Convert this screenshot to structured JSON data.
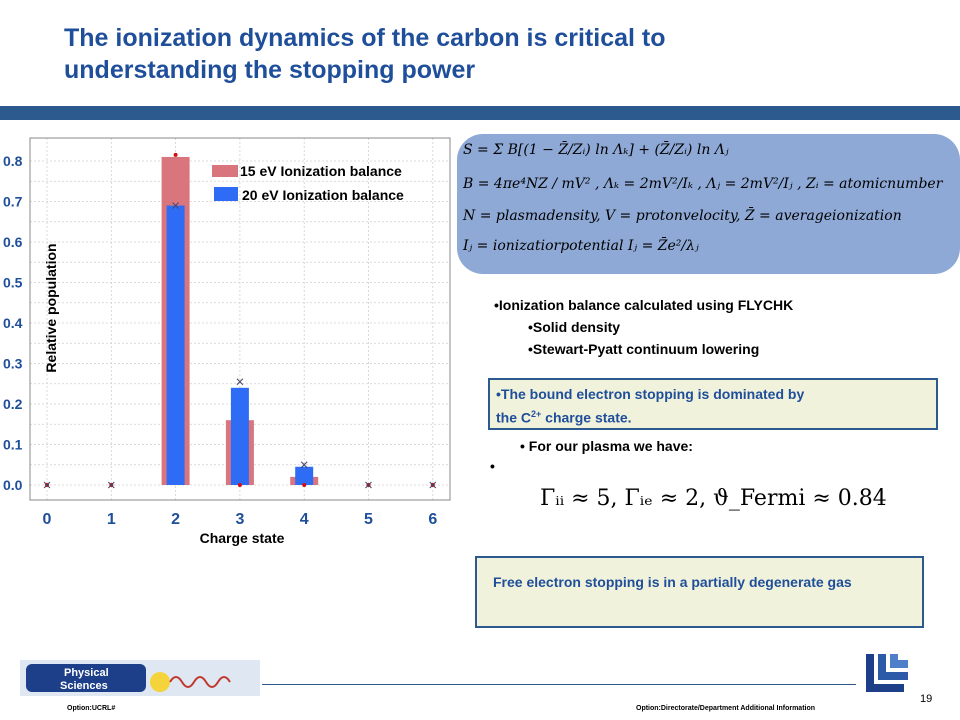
{
  "slide": {
    "title": "The ionization dynamics of the carbon is critical to understanding the stopping power",
    "page_number": "19",
    "footer_left": "Option:UCRL#",
    "footer_right": "Option:Directorate/Department Additional Information",
    "logo_line1": "Physical",
    "logo_line2": "Sciences"
  },
  "formulas": {
    "line1": "S = Σ B[(1 − Z̄/Zᵢ) ln Λₖ] + (Z̄/Zᵢ) ln Λⱼ",
    "line2": "B = 4πe⁴NZ / mV² ,  Λₖ = 2mV²/Iₖ ,  Λⱼ = 2mV²/Iⱼ ,  Zᵢ = atomicnumber",
    "line3": "N = plasmadensity, V = protonvelocity, Z̄ = averageionization",
    "line4": "Iⱼ = ionizatiorpotential  I⁡ⱼ = Z̄e²/λⱼ"
  },
  "bullets": {
    "main": "•Ionization balance calculated using FLYCHK",
    "sub1": "•Solid density",
    "sub2": "•Stewart-Pyatt continuum lowering"
  },
  "box1": {
    "line1": "•The bound electron stopping is dominated by",
    "line2_pre": "the C",
    "line2_sup": "2+",
    "line2_post": " charge state."
  },
  "plasma": {
    "line1": "• For our plasma we have:",
    "line2": "•"
  },
  "gamma_formula": "Γᵢᵢ ≈ 5,  Γᵢₑ ≈ 2,  ϑ_Fermi ≈ 0.84",
  "box2": {
    "text": "Free electron stopping is in a partially degenerate gas"
  },
  "chart_data": {
    "type": "bar",
    "categories": [
      "0",
      "1",
      "2",
      "3",
      "4",
      "5",
      "6"
    ],
    "x_ticks": [
      "0",
      "1",
      "2",
      "3",
      "4",
      "5",
      "6"
    ],
    "y_ticks": [
      "0.0",
      "0.1",
      "0.2",
      "0.3",
      "0.4",
      "0.5",
      "0.6",
      "0.7",
      "0.8"
    ],
    "ylim": [
      0,
      0.85
    ],
    "xlabel": "Charge state",
    "ylabel": "Relative population",
    "grid": true,
    "legend_position": "top-right",
    "series": [
      {
        "name": "15 eV Ionization balance",
        "values": [
          0,
          0,
          0.81,
          0.16,
          0.02,
          0,
          0
        ],
        "color": "#d9757c"
      },
      {
        "name": "20 eV Ionization balance",
        "values": [
          0,
          0,
          0.69,
          0.24,
          0.045,
          0,
          0
        ],
        "color": "#2f6cf5"
      }
    ],
    "markers": {
      "dots": [
        0,
        0,
        0.815,
        0,
        0,
        0,
        0
      ],
      "crosses": [
        0,
        0,
        0.69,
        0.255,
        0.05,
        0,
        0
      ]
    }
  }
}
